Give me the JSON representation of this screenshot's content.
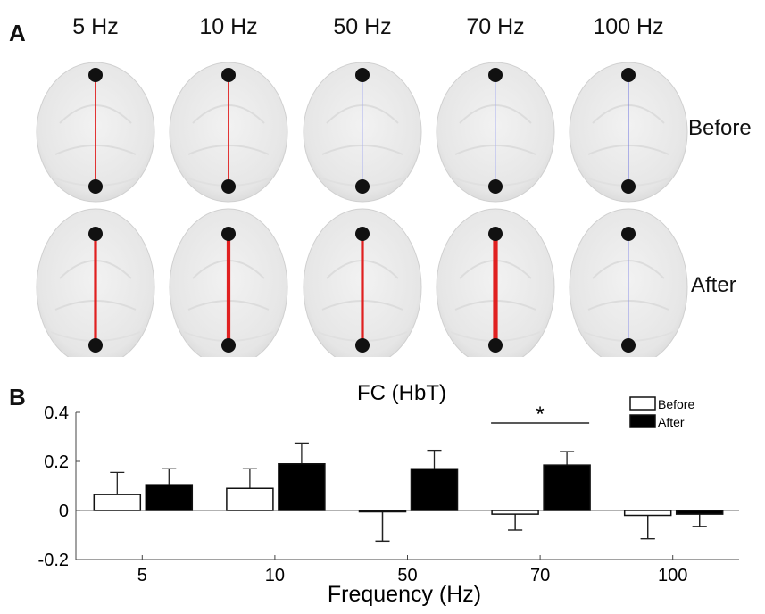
{
  "panel_a": {
    "label": "A",
    "frequencies": [
      "5 Hz",
      "10 Hz",
      "50 Hz",
      "70 Hz",
      "100 Hz"
    ],
    "rows": [
      "Before",
      "After"
    ],
    "connection_colors": {
      "Before": [
        "#e02020",
        "#e02020",
        "#aab0f0",
        "#aab0f0",
        "#6a70e0"
      ],
      "After": [
        "#e02020",
        "#e02020",
        "#e02020",
        "#e02020",
        "#8a8fe8"
      ]
    },
    "connection_strength": {
      "Before": [
        "thin",
        "thin",
        "faint",
        "faint",
        "faint"
      ],
      "After": [
        "thick",
        "thicker",
        "thick",
        "thickest",
        "faint"
      ]
    }
  },
  "panel_b": {
    "label": "B"
  },
  "chart_data": {
    "type": "bar",
    "title": "FC (HbT)",
    "xlabel": "Frequency (Hz)",
    "ylabel": "",
    "categories": [
      "5",
      "10",
      "50",
      "70",
      "100"
    ],
    "ylim": [
      -0.2,
      0.4
    ],
    "yticks": [
      "-0.2",
      "0",
      "0.2",
      "0.4"
    ],
    "series": [
      {
        "name": "Before",
        "values": [
          0.065,
          0.09,
          -0.005,
          -0.015,
          -0.02
        ],
        "errors": [
          0.09,
          0.08,
          0.12,
          0.065,
          0.095
        ],
        "fill": "#ffffff"
      },
      {
        "name": "After",
        "values": [
          0.105,
          0.19,
          0.17,
          0.185,
          -0.015
        ],
        "errors": [
          0.065,
          0.085,
          0.075,
          0.055,
          0.05
        ],
        "fill": "#000000"
      }
    ],
    "annotations": [
      {
        "text": "*",
        "category": "70"
      }
    ],
    "legend": "top-right",
    "grid": false
  }
}
